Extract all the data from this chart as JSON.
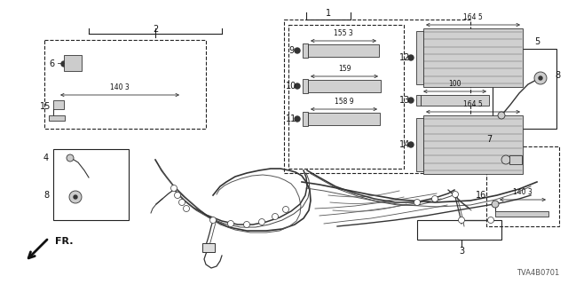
{
  "bg_color": "#ffffff",
  "diagram_id": "TVA4B0701"
}
